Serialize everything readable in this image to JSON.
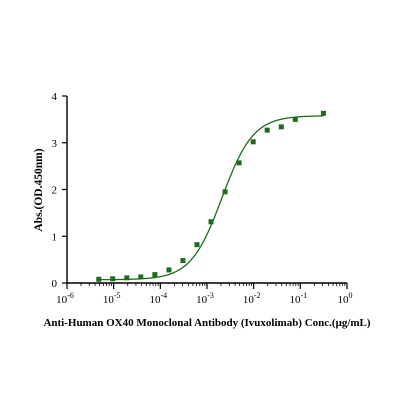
{
  "chart_data": {
    "type": "scatter",
    "title": "",
    "xlabel": "Anti-Human OX40 Monoclonal Antibody (Ivuxolimab) Conc.(μg/mL)",
    "ylabel": "Abs.(OD.450nm)",
    "xscale": "log",
    "xlim": [
      1e-06,
      1
    ],
    "ylim": [
      0,
      4
    ],
    "x_ticks": [
      {
        "base": "10",
        "exp": "-6"
      },
      {
        "base": "10",
        "exp": "-5"
      },
      {
        "base": "10",
        "exp": "-4"
      },
      {
        "base": "10",
        "exp": "-3"
      },
      {
        "base": "10",
        "exp": "-2"
      },
      {
        "base": "10",
        "exp": "-1"
      },
      {
        "base": "10",
        "exp": "0"
      }
    ],
    "y_ticks": [
      "0",
      "1",
      "2",
      "3",
      "4"
    ],
    "grid": false,
    "color": "#1e6b1e",
    "series": [
      {
        "marker": "square",
        "x": [
          4.8e-06,
          9.5e-06,
          1.91e-05,
          3.81e-05,
          7.63e-05,
          0.000153,
          0.000305,
          0.00061,
          0.00122,
          0.00244,
          0.00488,
          0.00977,
          0.0195,
          0.0391,
          0.0781,
          0.3125
        ],
        "y": [
          0.08,
          0.09,
          0.11,
          0.13,
          0.18,
          0.28,
          0.48,
          0.82,
          1.31,
          1.95,
          2.57,
          3.02,
          3.27,
          3.34,
          3.5,
          3.63
        ]
      }
    ],
    "fit": {
      "model": "4PL",
      "bottom": 0.07,
      "top": 3.58,
      "ec50": 0.0021,
      "hill": 1.3,
      "x_range": [
        4.8e-06,
        0.3125
      ]
    }
  }
}
